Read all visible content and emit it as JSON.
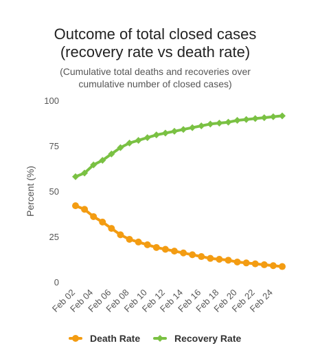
{
  "chart_data": {
    "type": "line",
    "title_lines": [
      "Outcome of total closed cases",
      "(recovery rate vs death rate)"
    ],
    "subtitle_lines": [
      "(Cumulative total deaths and recoveries over",
      "cumulative number of closed cases)"
    ],
    "ylabel": "Percent (%)",
    "ylim": [
      0,
      100
    ],
    "yticks": [
      0,
      25,
      50,
      75,
      100
    ],
    "x": [
      "Feb 02",
      "Feb 03",
      "Feb 04",
      "Feb 05",
      "Feb 06",
      "Feb 07",
      "Feb 08",
      "Feb 09",
      "Feb 10",
      "Feb 11",
      "Feb 12",
      "Feb 13",
      "Feb 14",
      "Feb 15",
      "Feb 16",
      "Feb 17",
      "Feb 18",
      "Feb 19",
      "Feb 20",
      "Feb 21",
      "Feb 22",
      "Feb 23",
      "Feb 24",
      "Feb 25"
    ],
    "xtick_labels": [
      "Feb 02",
      "Feb 04",
      "Feb 06",
      "Feb 08",
      "Feb 10",
      "Feb 12",
      "Feb 14",
      "Feb 16",
      "Feb 18",
      "Feb 20",
      "Feb 22",
      "Feb 24"
    ],
    "series": [
      {
        "name": "Death Rate",
        "color": "#f39c12",
        "marker": "circle",
        "values": [
          42,
          40,
          36,
          33,
          29.5,
          26,
          23.5,
          22,
          20.5,
          19,
          18,
          17,
          16,
          15,
          14,
          13,
          12.5,
          12,
          11,
          10.5,
          10,
          9.5,
          9,
          8.5
        ]
      },
      {
        "name": "Recovery Rate",
        "color": "#7ac143",
        "marker": "diamond",
        "values": [
          58,
          60,
          64.5,
          67,
          70.5,
          74,
          76.5,
          78,
          79.5,
          81,
          82,
          83,
          84,
          85,
          86,
          87,
          87.5,
          88,
          89,
          89.5,
          90,
          90.5,
          91,
          91.5
        ]
      }
    ],
    "grid": false,
    "legend_position": "bottom"
  }
}
